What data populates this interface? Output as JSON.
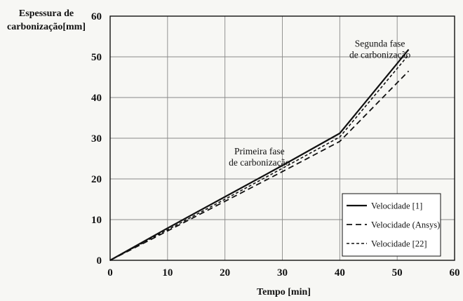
{
  "chart_data": {
    "type": "line",
    "ylabel_lines": [
      "Espessura de",
      "carbonização[mm]"
    ],
    "xlabel": "Tempo [min]",
    "xlim": [
      0,
      60
    ],
    "ylim": [
      0,
      60
    ],
    "xticks": [
      0,
      10,
      20,
      30,
      40,
      50,
      60
    ],
    "yticks": [
      0,
      10,
      20,
      30,
      40,
      50,
      60
    ],
    "grid": true,
    "legend_position": "lower-right",
    "series": [
      {
        "name": "Velocidade [1]",
        "style": "solid",
        "x": [
          0,
          10,
          20,
          30,
          40,
          52
        ],
        "y": [
          0,
          7.9,
          15.6,
          23.3,
          31.2,
          51.8
        ]
      },
      {
        "name": "Velocidade (Ansys)",
        "style": "dashed",
        "x": [
          0,
          10,
          20,
          30,
          40,
          52
        ],
        "y": [
          0,
          7.2,
          14.5,
          21.8,
          29.2,
          46.5
        ]
      },
      {
        "name": "Velocidade [22]",
        "style": "dotted",
        "x": [
          0,
          10,
          20,
          30,
          40,
          52
        ],
        "y": [
          0,
          7.5,
          15.0,
          22.6,
          30.3,
          50.5
        ]
      }
    ],
    "annotations": [
      {
        "lines": [
          "Segunda fase",
          "de carbonização"
        ],
        "x": 47,
        "y": 52.5
      },
      {
        "lines": [
          "Primeira fase",
          "de carbonização"
        ],
        "x": 26,
        "y": 26
      }
    ]
  }
}
